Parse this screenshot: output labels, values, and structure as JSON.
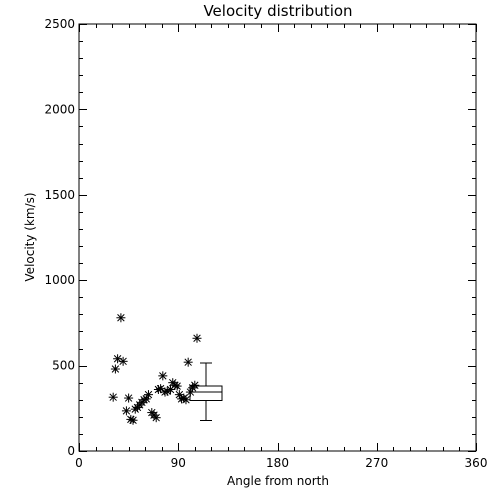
{
  "chart_data": {
    "type": "scatter",
    "title": "Velocity distribution",
    "xlabel": "Angle from north",
    "ylabel": "Velocity (km/s)",
    "xlim": [
      0,
      360
    ],
    "ylim": [
      0,
      2500
    ],
    "xticks": [
      0,
      90,
      180,
      270,
      360
    ],
    "yticks": [
      0,
      500,
      1000,
      1500,
      2000,
      2500
    ],
    "grid": false,
    "marker": "asterisk",
    "color": "#000000",
    "points": [
      [
        31,
        315
      ],
      [
        33,
        480
      ],
      [
        35,
        540
      ],
      [
        38,
        780
      ],
      [
        40,
        525
      ],
      [
        43,
        235
      ],
      [
        45,
        310
      ],
      [
        47,
        185
      ],
      [
        49,
        180
      ],
      [
        51,
        245
      ],
      [
        53,
        255
      ],
      [
        55,
        270
      ],
      [
        57,
        285
      ],
      [
        59,
        300
      ],
      [
        61,
        305
      ],
      [
        63,
        330
      ],
      [
        66,
        225
      ],
      [
        68,
        210
      ],
      [
        70,
        195
      ],
      [
        72,
        360
      ],
      [
        74,
        365
      ],
      [
        76,
        440
      ],
      [
        78,
        345
      ],
      [
        80,
        350
      ],
      [
        83,
        360
      ],
      [
        85,
        400
      ],
      [
        87,
        385
      ],
      [
        89,
        380
      ],
      [
        91,
        330
      ],
      [
        93,
        305
      ],
      [
        95,
        310
      ],
      [
        97,
        300
      ],
      [
        99,
        520
      ],
      [
        101,
        345
      ],
      [
        103,
        370
      ],
      [
        105,
        385
      ],
      [
        107,
        660
      ]
    ],
    "boxplot": {
      "x": 115,
      "min": 180,
      "q1": 295,
      "median": 345,
      "q3": 380,
      "max": 515
    }
  }
}
